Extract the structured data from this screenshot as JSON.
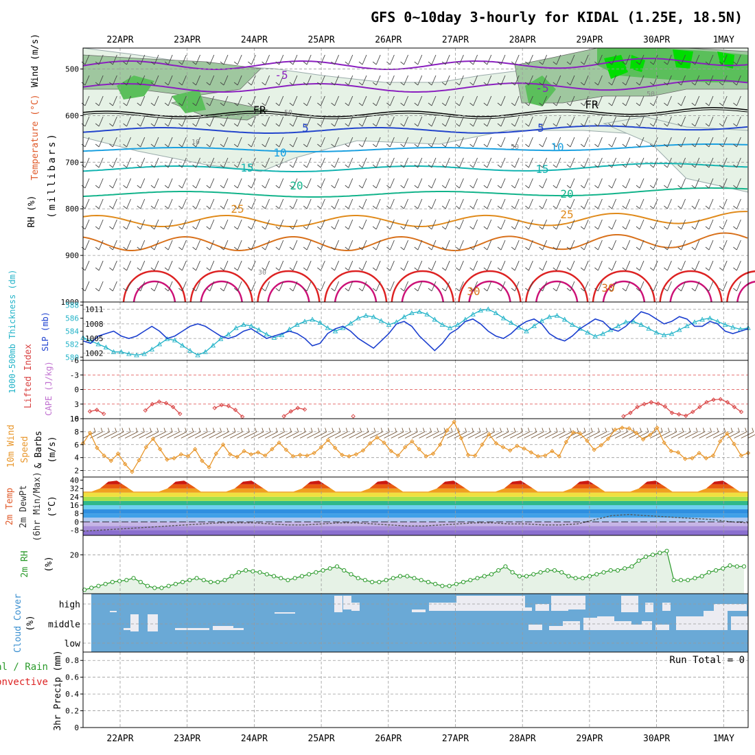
{
  "title": "GFS 0~10day 3-hourly for KIDAL (1.25E, 18.5N)",
  "dates": [
    "22APR",
    "23APR",
    "24APR",
    "25APR",
    "26APR",
    "27APR",
    "28APR",
    "29APR",
    "30APR",
    "1MAY"
  ],
  "colors": {
    "rh_fill": "#5bbf5b",
    "rh_bright": "#00dd00",
    "purple": "#8a1fbf",
    "blue": "#2244cc",
    "teal": "#11aacc",
    "green_teal": "#11b38a",
    "orange": "#e08a1a",
    "red": "#dd2222",
    "magenta": "#cc1177",
    "slp": "#1b3fcf",
    "thick": "#22b3c8",
    "li": "#d94444",
    "wind": "#e8962a",
    "rh2m": "#2a9a2a",
    "cloud": "#6aa9d6",
    "cloud_bar": "#ececf2"
  },
  "panels": {
    "upper": {
      "ylabel_wind": "Wind (m/s)",
      "ylabel_temp": "Temperature (°C)",
      "ylabel_rh": "RH (%)",
      "ylabel_units": "(millibars)",
      "yticks": [
        "500",
        "600",
        "700",
        "800",
        "900",
        "1000"
      ],
      "contour_labels": [
        "-5",
        "FR",
        "5",
        "10",
        "15",
        "20",
        "25",
        "30",
        "-5",
        "FR",
        "5",
        "10",
        "15",
        "20",
        "25",
        "30",
        "50",
        "50",
        "30",
        "10",
        "50"
      ]
    },
    "slp": {
      "ylabel_thick": "1000-500mb Thickness (dm)",
      "ylabel_slp": "SLP (mb)",
      "left_ticks": [
        "588",
        "586",
        "584",
        "582",
        "580"
      ],
      "right_ticks": [
        "1011",
        "1008",
        "1005",
        "1002"
      ]
    },
    "li": {
      "ylabel_li": "Lifted Index",
      "ylabel_cape": "CAPE (J/kg)",
      "yticks": [
        "-6",
        "-3",
        "0",
        "3",
        "6"
      ]
    },
    "wind10": {
      "ylabel_a": "10m Wind",
      "ylabel_b": "Speed",
      "ylabel_c": "& Barbs",
      "ylabel_units": "(m/s)",
      "yticks": [
        "10",
        "8",
        "6",
        "4",
        "2"
      ]
    },
    "temp2m": {
      "ylabel_a": "2m Temp",
      "ylabel_b": "2m DewPt",
      "ylabel_c": "(6hr Min/Max)",
      "ylabel_units": "(°C)",
      "yticks": [
        "40",
        "32",
        "24",
        "16",
        "8",
        "0",
        "-8"
      ]
    },
    "rh2m": {
      "ylabel": "2m RH",
      "ylabel_units": "(%)",
      "yticks": [
        "20"
      ]
    },
    "cloud": {
      "ylabel": "Cloud Cover",
      "ylabel_units": "(%)",
      "levels": [
        "high",
        "middle",
        "low"
      ]
    },
    "precip": {
      "ylabel_a": "Total / Rain",
      "ylabel_b": "Convective",
      "ylabel_c": "3hr Precip (mm)",
      "run_total": "Run Total = 0",
      "yticks": [
        "0.8",
        "0.6",
        "0.4",
        "0.2",
        "0"
      ]
    }
  },
  "chart_data": [
    {
      "type": "line",
      "title": "SLP (mb) / 1000-500mb Thickness (dm)",
      "x_unit": "3-hourly steps from 21APR 12Z",
      "series": [
        {
          "name": "SLP (mb)",
          "axis": "right",
          "ylim": [
            1000.5,
            1012.5
          ],
          "values": [
            1004.5,
            1004,
            1005.5,
            1006,
            1006.5,
            1005.5,
            1005,
            1005.5,
            1006.5,
            1007.5,
            1006.5,
            1005,
            1005.5,
            1006.5,
            1007.5,
            1008,
            1007.5,
            1006.5,
            1005.5,
            1005,
            1005.5,
            1006.5,
            1007,
            1006,
            1005,
            1005.5,
            1006,
            1006.5,
            1006,
            1005,
            1003.5,
            1004,
            1006,
            1007,
            1007.5,
            1006.5,
            1005,
            1004,
            1003,
            1004.5,
            1006,
            1008,
            1008.5,
            1007.5,
            1005.5,
            1004,
            1002.5,
            1004,
            1006,
            1007,
            1008.5,
            1009,
            1008,
            1006.5,
            1005.5,
            1005,
            1006,
            1007.5,
            1008.5,
            1009,
            1008,
            1006,
            1005,
            1004.5,
            1005.5,
            1007,
            1008,
            1009,
            1008.5,
            1007,
            1006.5,
            1007.5,
            1009,
            1010.5,
            1010,
            1009,
            1008,
            1008.5,
            1009.5,
            1009,
            1007.5,
            1007.5,
            1008.5,
            1008,
            1006.5,
            1006,
            1006.5,
            1007
          ]
        },
        {
          "name": "1000-500mb Thickness (dm)",
          "axis": "left",
          "ylim": [
            579.5,
            588.5
          ],
          "values": [
            583,
            582.5,
            582,
            581.5,
            580.8,
            580.8,
            580.5,
            580.3,
            580.5,
            581.2,
            582,
            582.8,
            582.6,
            581.8,
            581,
            580.3,
            580.8,
            581.8,
            582.8,
            583.5,
            584.5,
            585,
            584.8,
            584.2,
            583.5,
            583,
            583.4,
            584.3,
            585,
            585.5,
            585.8,
            585.3,
            584.5,
            584,
            584.5,
            585.2,
            586,
            586.4,
            586.2,
            585.6,
            585,
            585.4,
            586.2,
            586.8,
            587,
            586.6,
            585.8,
            585,
            584.5,
            585,
            585.8,
            586.6,
            587.2,
            587.4,
            586.8,
            586,
            585.3,
            584.6,
            584,
            584.8,
            585.6,
            586.2,
            586.4,
            585.8,
            585,
            584.4,
            583.8,
            583.2,
            583.6,
            584.2,
            584.8,
            585.4,
            585.5,
            585,
            584.4,
            583.8,
            583.4,
            583.6,
            584.2,
            584.8,
            585.4,
            585.8,
            586,
            585.5,
            585,
            584.6,
            584.3,
            584.5
          ]
        }
      ]
    },
    {
      "type": "line",
      "title": "Lifted Index",
      "ylim": [
        6,
        -6
      ],
      "values": [
        4.5,
        4.2,
        5,
        null,
        null,
        null,
        null,
        null,
        4.3,
        3,
        2.5,
        2.8,
        3.6,
        5,
        null,
        null,
        null,
        null,
        3.8,
        3.2,
        3.4,
        4.2,
        5.6,
        null,
        null,
        null,
        null,
        null,
        5.5,
        4.5,
        3.8,
        4.1,
        null,
        null,
        null,
        null,
        null,
        null,
        5.5,
        null,
        null,
        null,
        null,
        null,
        null,
        null,
        null,
        null,
        null,
        null,
        null,
        null,
        null,
        null,
        null,
        null,
        null,
        null,
        null,
        null,
        null,
        null,
        null,
        null,
        null,
        null,
        null,
        null,
        null,
        null,
        null,
        null,
        null,
        null,
        null,
        null,
        null,
        5.5,
        4.8,
        3.6,
        3,
        2.6,
        2.9,
        3.5,
        4.8,
        5.1,
        5.4,
        4.6,
        3.6,
        2.6,
        2.1,
        2,
        2.6,
        3.6,
        4.6
      ]
    },
    {
      "type": "line",
      "title": "10m Wind Speed (m/s)",
      "ylim": [
        1,
        10
      ],
      "values": [
        6.2,
        7.8,
        5.5,
        4.3,
        3.5,
        4.6,
        3,
        1.8,
        3.6,
        5.6,
        6.9,
        5.3,
        3.7,
        3.9,
        4.5,
        4.2,
        5.3,
        3.5,
        2.5,
        4.6,
        6,
        4.5,
        4.1,
        5,
        4.5,
        4.8,
        4.3,
        5.3,
        6.3,
        5.2,
        4.2,
        4.4,
        4.3,
        4.7,
        5.6,
        6.7,
        5.5,
        4.4,
        4.2,
        4.5,
        5.1,
        6.2,
        7.1,
        6.3,
        5,
        4.3,
        5.6,
        6.5,
        5.3,
        4.2,
        4.6,
        6,
        8.2,
        9.5,
        7,
        4.4,
        4.3,
        6,
        7.6,
        6.2,
        5.6,
        5.1,
        5.8,
        5.4,
        4.8,
        4.2,
        4.3,
        5,
        4.2,
        6.4,
        7.9,
        7.7,
        6.6,
        5.2,
        5.9,
        6.9,
        8.3,
        8.6,
        8.5,
        7.8,
        6.8,
        7.5,
        8.6,
        6.3,
        5,
        4.8,
        3.8,
        3.9,
        4.7,
        3.9,
        4.3,
        6.5,
        7.7,
        6.1,
        4.3,
        4.7
      ]
    },
    {
      "type": "area",
      "title": "2m Temp / 2m DewPt (°C)",
      "ylim": [
        -13,
        43
      ],
      "series": [
        {
          "name": "2m Temp",
          "daily_min": 29,
          "daily_max": 40
        },
        {
          "name": "2m DewPt",
          "values": [
            -9,
            -8,
            -7,
            -6,
            -5,
            -4,
            -3,
            -2,
            -1,
            -1,
            -1,
            -2,
            -3,
            -3,
            -2,
            -1,
            -1,
            -2,
            -3,
            -4,
            -4,
            -3,
            -2,
            -1,
            -1,
            -2,
            -2,
            -3,
            -3,
            -2,
            2,
            6,
            7,
            6,
            5,
            4,
            3,
            2,
            0,
            -1
          ]
        }
      ]
    },
    {
      "type": "area",
      "title": "2m RH (%)",
      "ylim": [
        0,
        30
      ],
      "values": [
        2,
        3,
        4,
        5,
        6,
        6.5,
        7,
        8,
        6,
        4,
        3,
        3,
        4,
        5,
        6,
        7,
        8,
        7,
        6,
        6,
        7,
        9,
        11,
        12,
        11.5,
        11,
        10,
        9,
        8,
        7,
        8,
        9,
        10,
        11,
        12,
        13,
        14,
        12,
        10,
        8,
        7,
        6,
        6,
        7,
        8,
        9,
        9,
        8,
        7,
        6,
        5,
        4,
        4,
        5,
        6,
        7,
        8,
        9,
        10,
        12,
        14,
        11,
        9,
        9,
        10,
        11,
        12,
        12,
        11,
        9,
        8,
        8,
        9,
        10,
        11,
        12,
        12,
        13,
        14,
        17,
        19,
        20,
        21,
        22,
        7,
        7,
        7,
        8,
        9,
        11,
        12,
        13,
        14.5,
        14,
        14
      ]
    },
    {
      "type": "bar",
      "title": "Cloud Cover",
      "levels": [
        "high",
        "middle",
        "low"
      ],
      "note": "high cloud bars rising from middle band; mostly clear low levels"
    },
    {
      "type": "bar",
      "title": "3hr Precip (mm)",
      "ylim": [
        0,
        0.9
      ],
      "values": [
        0
      ],
      "run_total": 0
    }
  ]
}
